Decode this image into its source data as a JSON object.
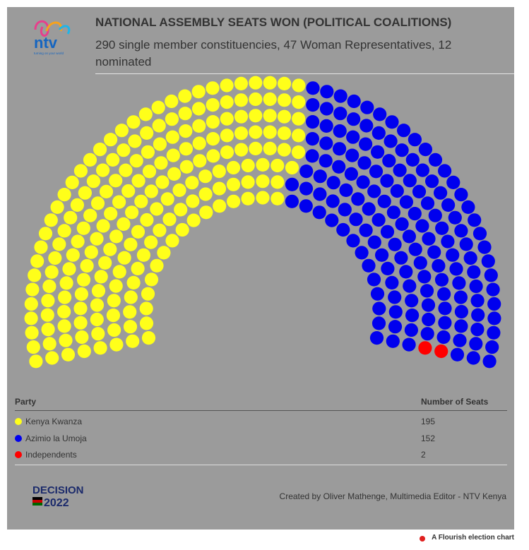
{
  "chart_data": {
    "type": "parliament",
    "title": "NATIONAL ASSEMBLY SEATS WON (POLITICAL COALITIONS)",
    "subtitle": "290 single member constituencies, 47 Woman Representatives, 12 nominated",
    "categories": [
      "Kenya Kwanza",
      "Azimio la Umoja",
      "Independents"
    ],
    "values": [
      195,
      152,
      2
    ],
    "colors": [
      "#ffff1a",
      "#0000ee",
      "#ff0000"
    ],
    "table_headers": [
      "Party",
      "Number of Seats"
    ]
  },
  "logo": {
    "name": "ntv",
    "tagline": "turning on your world"
  },
  "badge": {
    "line1": "DECISION",
    "line2": "2022"
  },
  "credit": "Created by Oliver Mathenge, Multimedia Editor - NTV Kenya",
  "footer": "A Flourish election chart"
}
